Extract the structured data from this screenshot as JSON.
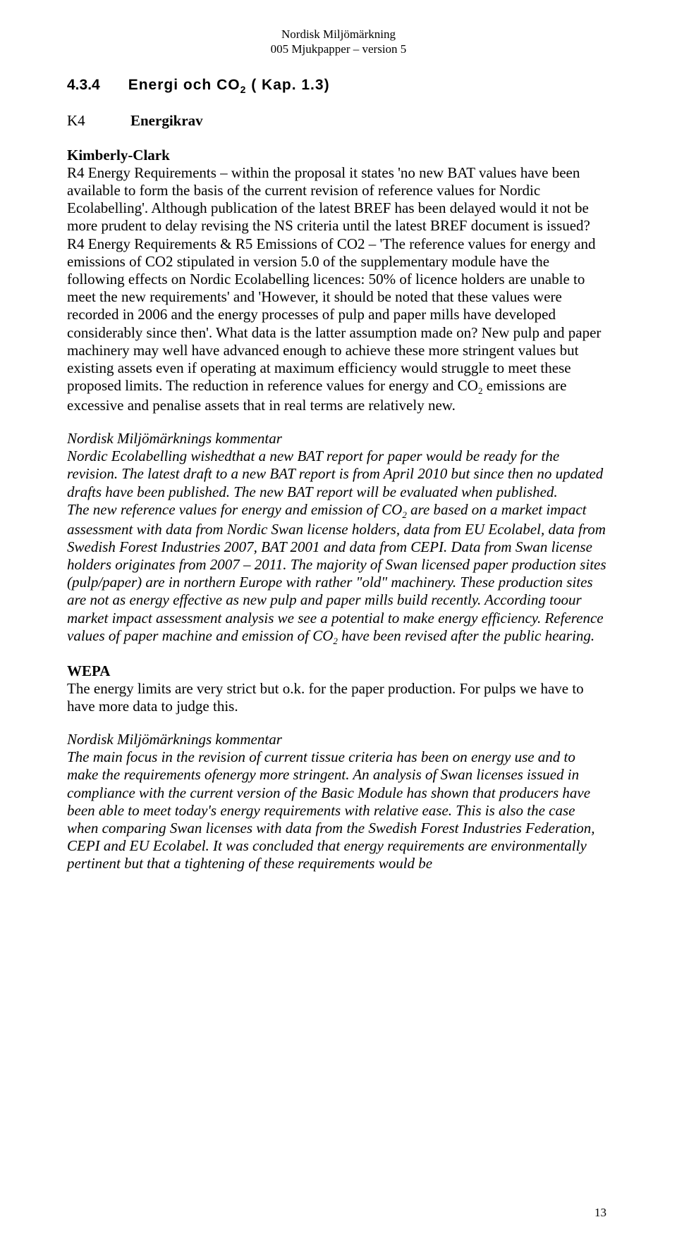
{
  "header": {
    "line1": "Nordisk Miljömärkning",
    "line2": "005 Mjukpapper – version 5"
  },
  "section": {
    "number": "4.3.4",
    "title_pre": "Energi och CO",
    "title_sub": "2",
    "title_post": " ( Kap. 1.3)"
  },
  "k4": {
    "label": "K4",
    "title": "Energikrav"
  },
  "kc": {
    "heading": "Kimberly-Clark",
    "body": "R4 Energy Requirements – within the proposal it states 'no new BAT values have been available to form the basis of the current revision of reference values for Nordic Ecolabelling'. Although publication of the latest BREF has been delayed would it not be more prudent to delay revising the NS criteria until the latest BREF document is issued?",
    "body2a": "R4 Energy Requirements & R5 Emissions of CO2 – 'The reference values for energy and emissions of CO2 stipulated in version 5.0 of the supplementary module have the following effects on Nordic Ecolabelling licences: 50% of licence holders are unable to meet the new requirements' and 'However, it should be noted that these values were recorded in 2006 and the energy processes of pulp and paper mills have developed considerably since then'. What data is the latter assumption made on? New pulp and paper machinery may well have advanced enough to achieve these more stringent values but existing assets even if operating at maximum efficiency would struggle to meet these proposed limits. The reduction in reference values for energy and CO",
    "body2sub": "2",
    "body2b": " emissions are excessive and penalise assets that in real terms are relatively new."
  },
  "comment1": {
    "heading": "Nordisk Miljömärknings kommentar",
    "body_a": "Nordic Ecolabelling wishedthat a new BAT report for paper would be ready for the revision. The latest draft to a new BAT report is from April 2010 but since then no updated drafts have been published. The new BAT report will be evaluated when published.",
    "body_b_pre": "The new reference values for energy and emission of CO",
    "body_b_sub": "2",
    "body_b_mid": " are based on a market impact assessment with data from Nordic Swan license holders, data from EU Ecolabel, data from Swedish Forest Industries 2007, BAT 2001 and data from CEPI. Data from Swan license holders originates from 2007 – 2011. The majority of Swan licensed paper production sites (pulp/paper) are in northern Europe with rather \"old\" machinery. These production sites are not as energy effective as new pulp and paper mills build recently. According toour market impact assessment analysis we see a potential to make energy efficiency. Reference values of paper machine and emission of CO",
    "body_b_sub2": "2",
    "body_b_post": " have been revised after the public hearing."
  },
  "wepa": {
    "heading": "WEPA",
    "body": "The energy limits are very strict but o.k. for the paper production. For pulps we have to have more data to judge this."
  },
  "comment2": {
    "heading": "Nordisk Miljömärknings kommentar",
    "body": "The main focus in the revision of current tissue criteria has been on energy use and to make the requirements ofenergy more stringent. An analysis of Swan licenses issued in compliance with the current version of the Basic Module has shown that producers have been able to meet today's energy requirements with relative ease. This is also the case when comparing Swan licenses with data from the Swedish Forest Industries Federation, CEPI and EU Ecolabel. It was concluded that energy requirements are environmentally pertinent but that a tightening of these requirements would be"
  },
  "page_number": "13"
}
